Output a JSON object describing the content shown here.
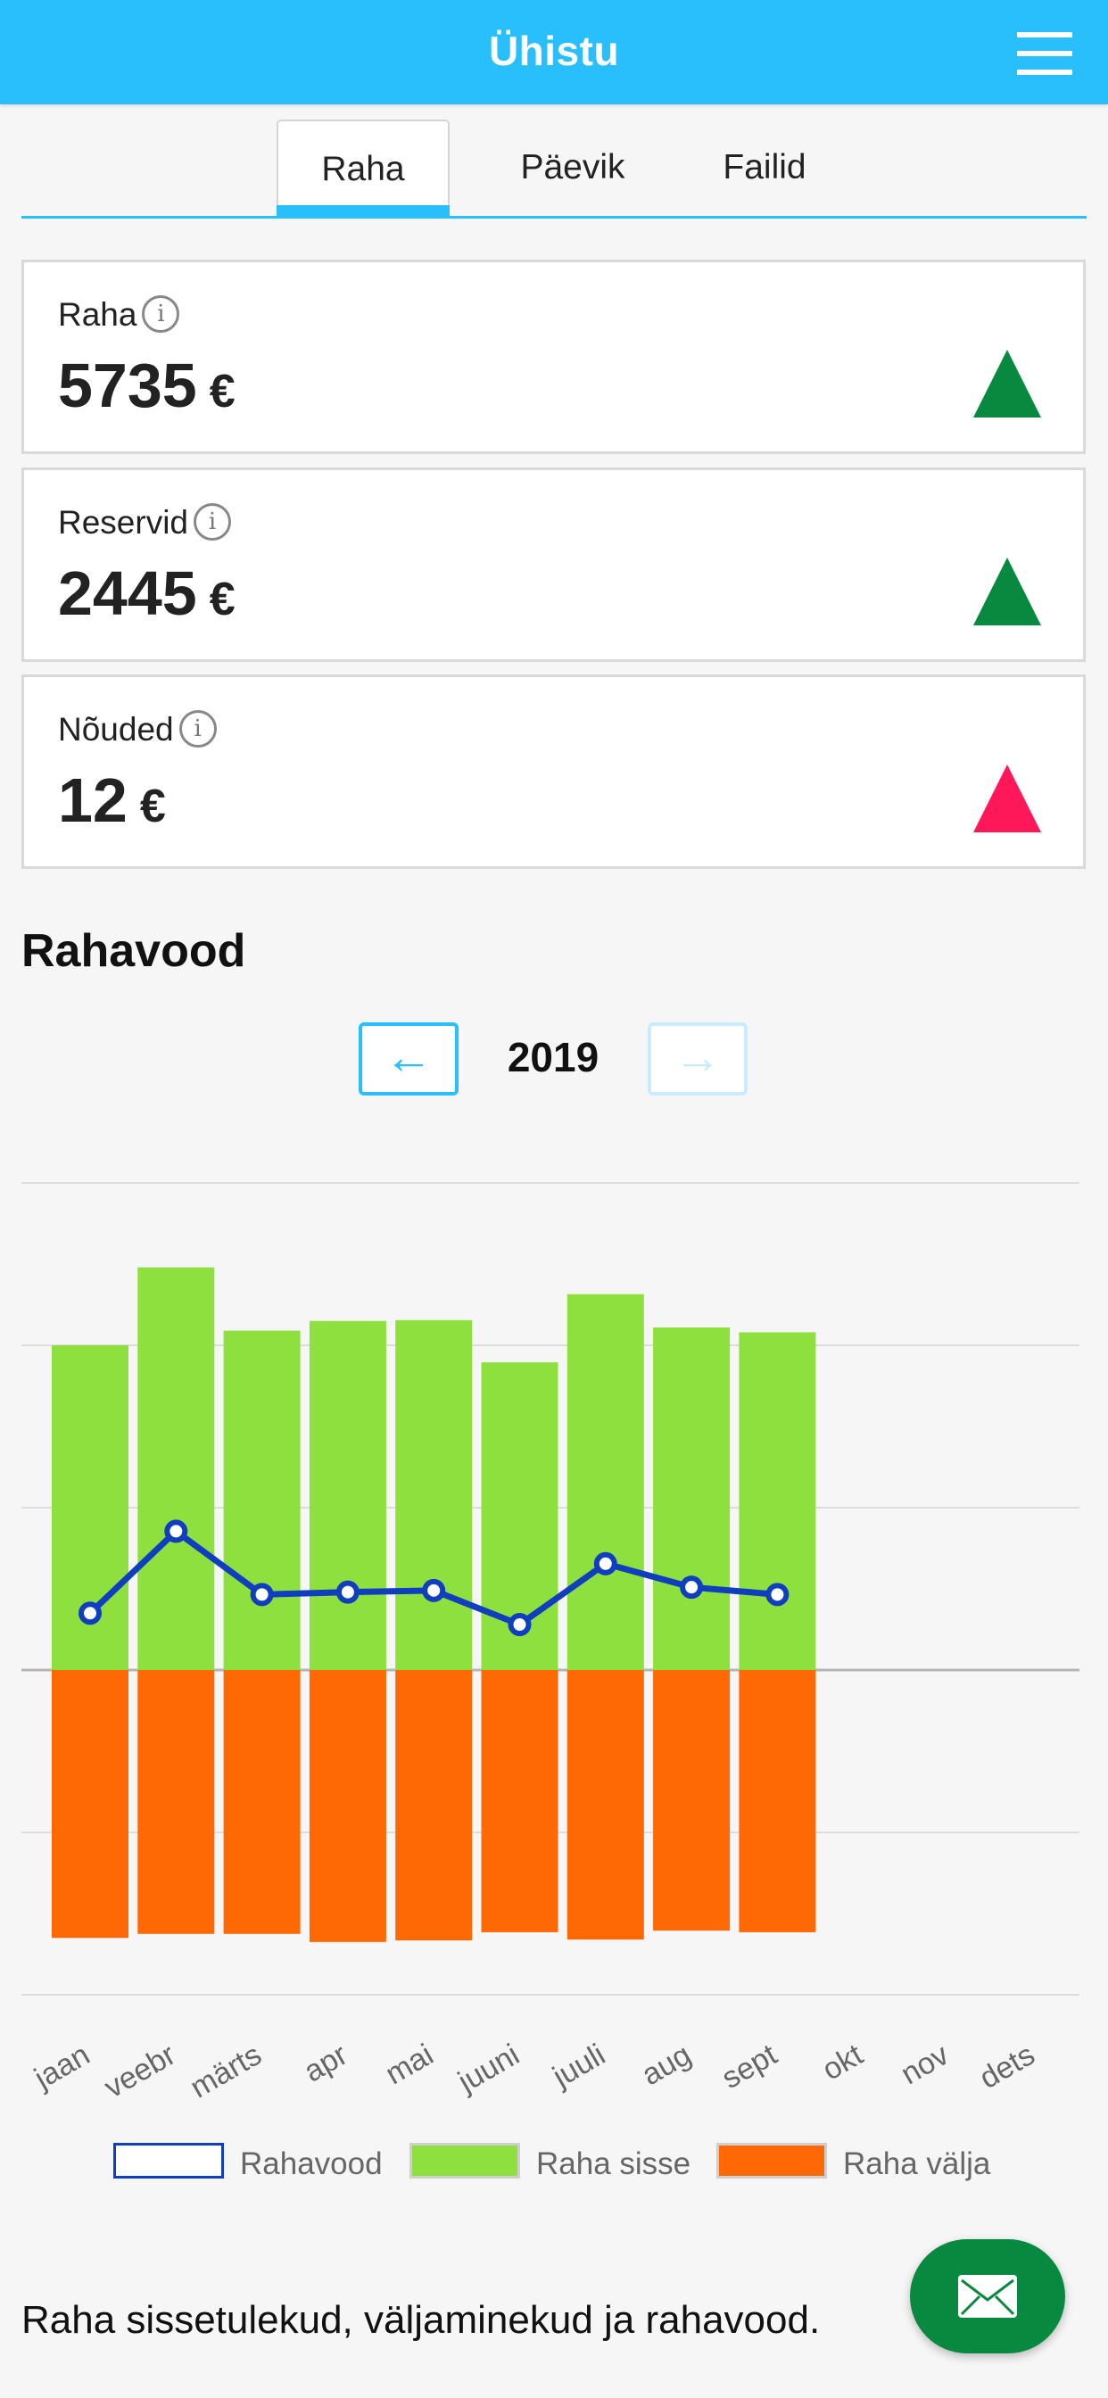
{
  "header": {
    "title": "Ühistu",
    "menu_icon": "hamburger-menu-icon"
  },
  "tabs": [
    {
      "label": "Raha",
      "active": true
    },
    {
      "label": "Päevik",
      "active": false
    },
    {
      "label": "Failid",
      "active": false
    }
  ],
  "cards": [
    {
      "label": "Raha",
      "value": "5735",
      "unit": "€",
      "trend": "up",
      "trend_color": "#07893f"
    },
    {
      "label": "Reservid",
      "value": "2445",
      "unit": "€",
      "trend": "up",
      "trend_color": "#07893f"
    },
    {
      "label": "Nõuded",
      "value": "12",
      "unit": "€",
      "trend": "up",
      "trend_color": "#fe1759"
    }
  ],
  "section": {
    "title": "Rahavood",
    "year": "2019",
    "prev_label": "←",
    "next_label": "→"
  },
  "chart_data": {
    "type": "bar",
    "categories": [
      "jaan",
      "veebr",
      "märts",
      "apr",
      "mai",
      "juuni",
      "juuli",
      "aug",
      "sept",
      "okt",
      "nov",
      "dets"
    ],
    "ylim": [
      -2000,
      3000
    ],
    "grid": true,
    "legend_position": "bottom",
    "series": [
      {
        "name": "Raha sisse",
        "kind": "bar",
        "color": "#8ee03f",
        "values": [
          2000,
          2480,
          2090,
          2150,
          2155,
          1895,
          2315,
          2110,
          2080,
          null,
          null,
          null
        ]
      },
      {
        "name": "Raha välja",
        "kind": "bar",
        "color": "#fe6905",
        "values": [
          -1650,
          -1625,
          -1625,
          -1675,
          -1665,
          -1615,
          -1660,
          -1605,
          -1615,
          null,
          null,
          null
        ]
      },
      {
        "name": "Rahavood",
        "kind": "line",
        "color": "#0f3fbf",
        "values": [
          350,
          855,
          465,
          480,
          490,
          280,
          655,
          510,
          465,
          null,
          null,
          null
        ]
      }
    ]
  },
  "legend": [
    {
      "label": "Rahavood",
      "fill": "#ffffff",
      "border": "#0f3fbf"
    },
    {
      "label": "Raha sisse",
      "fill": "#8ee03f",
      "border": "#cfcfcf"
    },
    {
      "label": "Raha välja",
      "fill": "#fe6905",
      "border": "#cfcfcf"
    }
  ],
  "footer": {
    "text": "Raha sissetulekud, väljaminekud ja rahavood."
  },
  "fab": {
    "icon": "envelope-icon"
  }
}
